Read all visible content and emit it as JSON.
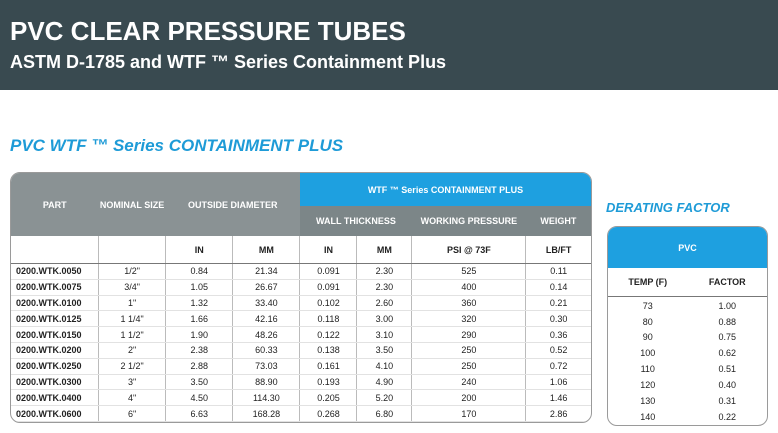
{
  "banner": {
    "title": "PVC CLEAR PRESSURE TUBES",
    "subtitle": "ASTM D-1785 and WTF ™ Series Containment Plus"
  },
  "section_title": "PVC WTF ™ Series CONTAINMENT PLUS",
  "main_table": {
    "headers": {
      "part": "PART",
      "nominal_size": "NOMINAL SIZE",
      "outside_diameter": "OUTSIDE DIAMETER",
      "wtf_group": "WTF ™ Series CONTAINMENT PLUS",
      "wall_thickness": "WALL THICKNESS",
      "working_pressure": "WORKING PRESSURE",
      "weight": "WEIGHT"
    },
    "units": {
      "od_in": "IN",
      "od_mm": "MM",
      "wt_in": "IN",
      "wt_mm": "MM",
      "psi": "PSI @ 73F",
      "lbft": "LB/FT"
    },
    "rows": [
      [
        "0200.WTK.0050",
        "1/2\"",
        "0.84",
        "21.34",
        "0.091",
        "2.30",
        "525",
        "0.11"
      ],
      [
        "0200.WTK.0075",
        "3/4\"",
        "1.05",
        "26.67",
        "0.091",
        "2.30",
        "400",
        "0.14"
      ],
      [
        "0200.WTK.0100",
        "1\"",
        "1.32",
        "33.40",
        "0.102",
        "2.60",
        "360",
        "0.21"
      ],
      [
        "0200.WTK.0125",
        "1 1/4\"",
        "1.66",
        "42.16",
        "0.118",
        "3.00",
        "320",
        "0.30"
      ],
      [
        "0200.WTK.0150",
        "1 1/2\"",
        "1.90",
        "48.26",
        "0.122",
        "3.10",
        "290",
        "0.36"
      ],
      [
        "0200.WTK.0200",
        "2\"",
        "2.38",
        "60.33",
        "0.138",
        "3.50",
        "250",
        "0.52"
      ],
      [
        "0200.WTK.0250",
        "2 1/2\"",
        "2.88",
        "73.03",
        "0.161",
        "4.10",
        "250",
        "0.72"
      ],
      [
        "0200.WTK.0300",
        "3\"",
        "3.50",
        "88.90",
        "0.193",
        "4.90",
        "240",
        "1.06"
      ],
      [
        "0200.WTK.0400",
        "4\"",
        "4.50",
        "114.30",
        "0.205",
        "5.20",
        "200",
        "1.46"
      ],
      [
        "0200.WTK.0600",
        "6\"",
        "6.63",
        "168.28",
        "0.268",
        "6.80",
        "170",
        "2.86"
      ]
    ]
  },
  "derating": {
    "title": "DERATING FACTOR",
    "header": "PVC",
    "col_temp": "TEMP (F)",
    "col_factor": "FACTOR",
    "rows": [
      [
        "73",
        "1.00"
      ],
      [
        "80",
        "0.88"
      ],
      [
        "90",
        "0.75"
      ],
      [
        "100",
        "0.62"
      ],
      [
        "110",
        "0.51"
      ],
      [
        "120",
        "0.40"
      ],
      [
        "130",
        "0.31"
      ],
      [
        "140",
        "0.22"
      ]
    ]
  },
  "colors": {
    "banner": "#394a50",
    "accent": "#1ea0e0",
    "header_grey": "#8a9294"
  }
}
